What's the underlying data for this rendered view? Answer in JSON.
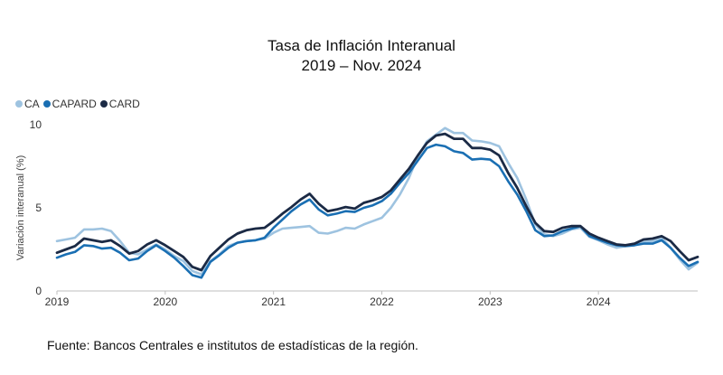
{
  "header": {
    "title_line1": "Tasa de Inflación Interanual",
    "title_line2": "2019 – Nov. 2024"
  },
  "footer": {
    "source": "Fuente: Bancos Centrales e institutos de estadísticas de la región."
  },
  "chart_data": {
    "type": "line",
    "title": "Tasa de Inflación Interanual 2019 – Nov. 2024",
    "ylabel": "Variación interanual (%)",
    "xlabel": "",
    "ylim": [
      0,
      10
    ],
    "yticks": [
      0,
      5,
      10
    ],
    "xticks": [
      "2019",
      "2020",
      "2021",
      "2022",
      "2023",
      "2024"
    ],
    "grid": false,
    "legend_position": "top-left",
    "series": [
      {
        "name": "CA",
        "color": "#9ec3e0",
        "values": [
          3.0,
          3.1,
          3.2,
          3.7,
          3.7,
          3.75,
          3.6,
          3.0,
          2.3,
          2.2,
          2.5,
          2.8,
          2.5,
          2.1,
          1.8,
          1.2,
          1.0,
          1.8,
          2.2,
          2.7,
          2.9,
          3.0,
          3.05,
          3.15,
          3.5,
          3.75,
          3.8,
          3.85,
          3.9,
          3.5,
          3.45,
          3.6,
          3.8,
          3.75,
          4.0,
          4.2,
          4.4,
          5.0,
          5.8,
          6.8,
          8.1,
          9.0,
          9.4,
          9.8,
          9.5,
          9.5,
          9.05,
          9.0,
          8.9,
          8.7,
          7.7,
          6.8,
          5.5,
          4.0,
          3.4,
          3.3,
          3.45,
          3.7,
          3.8,
          3.25,
          3.05,
          2.8,
          2.6,
          2.7,
          2.75,
          2.95,
          3.0,
          3.2,
          2.6,
          1.9,
          1.3,
          1.7
        ]
      },
      {
        "name": "CAPARD",
        "color": "#1a6fb3",
        "values": [
          2.0,
          2.2,
          2.35,
          2.75,
          2.7,
          2.55,
          2.6,
          2.3,
          1.85,
          1.95,
          2.4,
          2.75,
          2.4,
          2.0,
          1.5,
          0.95,
          0.8,
          1.75,
          2.15,
          2.6,
          2.9,
          3.0,
          3.05,
          3.2,
          3.8,
          4.3,
          4.8,
          5.2,
          5.5,
          4.9,
          4.55,
          4.65,
          4.8,
          4.75,
          5.0,
          5.15,
          5.4,
          5.85,
          6.5,
          7.1,
          7.85,
          8.6,
          8.8,
          8.7,
          8.4,
          8.3,
          7.9,
          7.95,
          7.9,
          7.5,
          6.6,
          5.8,
          4.8,
          3.65,
          3.3,
          3.35,
          3.6,
          3.75,
          3.9,
          3.3,
          3.1,
          2.9,
          2.75,
          2.7,
          2.75,
          2.85,
          2.85,
          3.05,
          2.6,
          2.0,
          1.5,
          1.75
        ]
      },
      {
        "name": "CARD",
        "color": "#1b2a45",
        "values": [
          2.3,
          2.5,
          2.7,
          3.15,
          3.05,
          2.95,
          3.05,
          2.7,
          2.25,
          2.4,
          2.8,
          3.05,
          2.75,
          2.4,
          2.05,
          1.45,
          1.25,
          2.1,
          2.6,
          3.1,
          3.45,
          3.65,
          3.75,
          3.8,
          4.2,
          4.65,
          5.05,
          5.5,
          5.85,
          5.25,
          4.8,
          4.9,
          5.05,
          4.95,
          5.3,
          5.45,
          5.65,
          6.05,
          6.7,
          7.35,
          8.15,
          8.9,
          9.35,
          9.45,
          9.15,
          9.15,
          8.6,
          8.6,
          8.5,
          8.15,
          7.1,
          6.2,
          5.1,
          4.1,
          3.6,
          3.55,
          3.8,
          3.9,
          3.9,
          3.45,
          3.2,
          3.0,
          2.8,
          2.75,
          2.85,
          3.1,
          3.15,
          3.3,
          3.0,
          2.4,
          1.85,
          2.05
        ]
      }
    ]
  }
}
